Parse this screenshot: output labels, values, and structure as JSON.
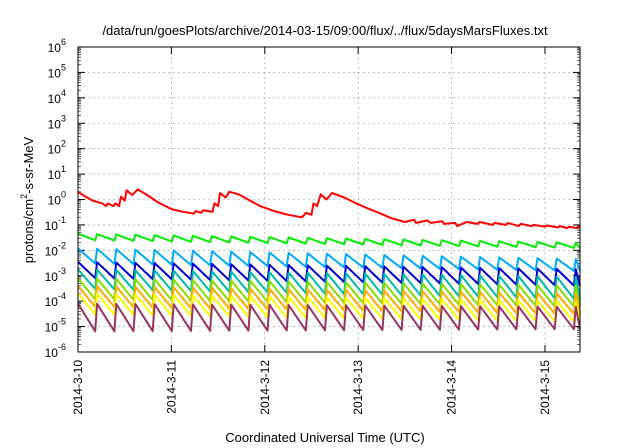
{
  "chart_data": {
    "type": "line",
    "title": "/data/run/goesPlots/archive/2014-03-15/09:00/flux/../flux/5daysMarsFluxes.txt",
    "xlabel": "Coordinated Universal Time (UTC)",
    "ylabel": {
      "prefix": "protons/cm",
      "sup": "2",
      "suffix": "-s-sr-MeV"
    },
    "x_ticks": [
      "2014-3-10",
      "2014-3-11",
      "2014-3-12",
      "2014-3-13",
      "2014-3-14",
      "2014-3-15"
    ],
    "xlim": [
      "2014-3-10",
      "2014-3-15T09:00"
    ],
    "yscale": "log",
    "ylim": [
      1e-06,
      1000000.0
    ],
    "y_ticks": [
      {
        "base": "10",
        "exp": "-6"
      },
      {
        "base": "10",
        "exp": "-5"
      },
      {
        "base": "10",
        "exp": "-4"
      },
      {
        "base": "10",
        "exp": "-3"
      },
      {
        "base": "10",
        "exp": "-2"
      },
      {
        "base": "10",
        "exp": "-1"
      },
      {
        "base": "10",
        "exp": "0"
      },
      {
        "base": "10",
        "exp": "1"
      },
      {
        "base": "10",
        "exp": "2"
      },
      {
        "base": "10",
        "exp": "3"
      },
      {
        "base": "10",
        "exp": "4"
      },
      {
        "base": "10",
        "exp": "5"
      },
      {
        "base": "10",
        "exp": "6"
      }
    ],
    "grid": true,
    "series": [
      {
        "color": "#ff0000",
        "values": [
          {
            "x": 0.0,
            "y": 2.0
          },
          {
            "x": 0.08,
            "y": 1.3
          },
          {
            "x": 0.16,
            "y": 0.9
          },
          {
            "x": 0.26,
            "y": 0.7
          },
          {
            "x": 0.3,
            "y": 0.55
          },
          {
            "x": 0.32,
            "y": 0.7
          },
          {
            "x": 0.38,
            "y": 0.55
          },
          {
            "x": 0.4,
            "y": 0.7
          },
          {
            "x": 0.44,
            "y": 0.55
          },
          {
            "x": 0.46,
            "y": 1.3
          },
          {
            "x": 0.5,
            "y": 0.9
          },
          {
            "x": 0.52,
            "y": 2.3
          },
          {
            "x": 0.58,
            "y": 1.5
          },
          {
            "x": 0.64,
            "y": 2.5
          },
          {
            "x": 0.74,
            "y": 1.5
          },
          {
            "x": 0.85,
            "y": 0.8
          },
          {
            "x": 1.0,
            "y": 0.42
          },
          {
            "x": 1.12,
            "y": 0.33
          },
          {
            "x": 1.24,
            "y": 0.28
          },
          {
            "x": 1.26,
            "y": 0.35
          },
          {
            "x": 1.32,
            "y": 0.3
          },
          {
            "x": 1.34,
            "y": 0.38
          },
          {
            "x": 1.44,
            "y": 0.33
          },
          {
            "x": 1.46,
            "y": 0.7
          },
          {
            "x": 1.5,
            "y": 0.55
          },
          {
            "x": 1.52,
            "y": 1.8
          },
          {
            "x": 1.58,
            "y": 1.2
          },
          {
            "x": 1.62,
            "y": 2.0
          },
          {
            "x": 1.72,
            "y": 1.6
          },
          {
            "x": 1.82,
            "y": 1.0
          },
          {
            "x": 1.95,
            "y": 0.55
          },
          {
            "x": 2.1,
            "y": 0.35
          },
          {
            "x": 2.25,
            "y": 0.25
          },
          {
            "x": 2.4,
            "y": 0.2
          },
          {
            "x": 2.44,
            "y": 0.3
          },
          {
            "x": 2.5,
            "y": 0.25
          },
          {
            "x": 2.52,
            "y": 0.7
          },
          {
            "x": 2.56,
            "y": 0.55
          },
          {
            "x": 2.6,
            "y": 1.6
          },
          {
            "x": 2.66,
            "y": 1.0
          },
          {
            "x": 2.72,
            "y": 1.8
          },
          {
            "x": 2.85,
            "y": 1.2
          },
          {
            "x": 2.98,
            "y": 0.7
          },
          {
            "x": 3.1,
            "y": 0.45
          },
          {
            "x": 3.24,
            "y": 0.28
          },
          {
            "x": 3.36,
            "y": 0.18
          },
          {
            "x": 3.5,
            "y": 0.13
          },
          {
            "x": 3.6,
            "y": 0.16
          },
          {
            "x": 3.62,
            "y": 0.12
          },
          {
            "x": 3.74,
            "y": 0.15
          },
          {
            "x": 3.78,
            "y": 0.12
          },
          {
            "x": 3.9,
            "y": 0.14
          },
          {
            "x": 3.92,
            "y": 0.11
          },
          {
            "x": 4.04,
            "y": 0.12
          },
          {
            "x": 4.06,
            "y": 0.09
          },
          {
            "x": 4.16,
            "y": 0.13
          },
          {
            "x": 4.28,
            "y": 0.11
          },
          {
            "x": 4.3,
            "y": 0.13
          },
          {
            "x": 4.44,
            "y": 0.1
          },
          {
            "x": 4.46,
            "y": 0.12
          },
          {
            "x": 4.58,
            "y": 0.1
          },
          {
            "x": 4.6,
            "y": 0.12
          },
          {
            "x": 4.72,
            "y": 0.09
          },
          {
            "x": 4.74,
            "y": 0.11
          },
          {
            "x": 4.86,
            "y": 0.09
          },
          {
            "x": 4.88,
            "y": 0.1
          },
          {
            "x": 5.0,
            "y": 0.085
          },
          {
            "x": 5.02,
            "y": 0.095
          },
          {
            "x": 5.14,
            "y": 0.08
          },
          {
            "x": 5.16,
            "y": 0.09
          },
          {
            "x": 5.24,
            "y": 0.075
          },
          {
            "x": 5.26,
            "y": 0.085
          },
          {
            "x": 5.34,
            "y": 0.075
          },
          {
            "x": 5.36,
            "y": 0.09
          },
          {
            "x": 5.375,
            "y": 0.08
          }
        ]
      },
      {
        "color": "#00ee00",
        "high": 0.045,
        "low": 0.025,
        "high_end": 0.02,
        "low_end": 0.012
      },
      {
        "color": "#00aaff",
        "high": 0.012,
        "low": 0.003,
        "high_end": 0.0045,
        "low_end": 0.0015
      },
      {
        "color": "#0000cc",
        "high": 0.0035,
        "low": 0.0008,
        "high_end": 0.0018,
        "low_end": 0.0004
      },
      {
        "color": "#00bbaa",
        "high": 0.0018,
        "low": 0.0003,
        "high_end": 0.0009,
        "low_end": 0.00012
      },
      {
        "color": "#88dd00",
        "high": 0.0008,
        "low": 0.00012,
        "high_end": 0.0004,
        "low_end": 6e-05
      },
      {
        "color": "#ffaa00",
        "high": 0.0004,
        "low": 6e-05,
        "high_end": 0.0002,
        "low_end": 3e-05
      },
      {
        "color": "#ffff00",
        "high": 0.0002,
        "low": 3e-05,
        "high_end": 0.0001,
        "low_end": 1.5e-05
      },
      {
        "color": "#993366",
        "high": 8e-05,
        "low": 6.5e-06,
        "high_end": 6e-05,
        "low_end": 8e-06
      }
    ]
  }
}
